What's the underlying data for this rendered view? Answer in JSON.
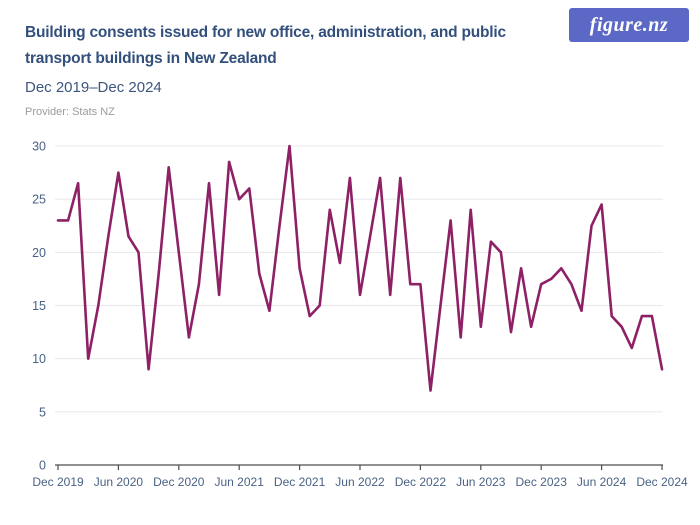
{
  "header": {
    "title": "Building consents issued for new office, administration, and public transport buildings in New Zealand",
    "title_lines": [
      "Building consents issued for new office, administration, and public",
      "transport buildings in New Zealand"
    ],
    "subtitle": "Dec 2019–Dec 2024",
    "provider": "Provider: Stats NZ",
    "logo_text": "figure.nz"
  },
  "colors": {
    "line": "#8e2066",
    "logo_bg": "#5b68c5",
    "title": "#33507d",
    "axis_label": "#4a6285",
    "grid": "#e8e8eb",
    "axis_line": "#4d4d4d",
    "provider": "#9b9b9b"
  },
  "chart_data": {
    "type": "line",
    "title": "Building consents issued for new office, administration, and public transport buildings in New Zealand",
    "subtitle": "Dec 2019–Dec 2024",
    "xlabel": "",
    "ylabel": "",
    "ylim": [
      0,
      30
    ],
    "yticks": [
      0,
      5,
      10,
      15,
      20,
      25,
      30
    ],
    "grid": true,
    "legend": false,
    "line_color": "#8e2066",
    "categories": [
      "Dec 2019",
      "Jan 2020",
      "Feb 2020",
      "Mar 2020",
      "Apr 2020",
      "May 2020",
      "Jun 2020",
      "Jul 2020",
      "Aug 2020",
      "Sep 2020",
      "Oct 2020",
      "Nov 2020",
      "Dec 2020",
      "Jan 2021",
      "Feb 2021",
      "Mar 2021",
      "Apr 2021",
      "May 2021",
      "Jun 2021",
      "Jul 2021",
      "Aug 2021",
      "Sep 2021",
      "Oct 2021",
      "Nov 2021",
      "Dec 2021",
      "Jan 2022",
      "Feb 2022",
      "Mar 2022",
      "Apr 2022",
      "May 2022",
      "Jun 2022",
      "Jul 2022",
      "Aug 2022",
      "Sep 2022",
      "Oct 2022",
      "Nov 2022",
      "Dec 2022",
      "Jan 2023",
      "Feb 2023",
      "Mar 2023",
      "Apr 2023",
      "May 2023",
      "Jun 2023",
      "Jul 2023",
      "Aug 2023",
      "Sep 2023",
      "Oct 2023",
      "Nov 2023",
      "Dec 2023",
      "Jan 2024",
      "Feb 2024",
      "Mar 2024",
      "Apr 2024",
      "May 2024",
      "Jun 2024",
      "Jul 2024",
      "Aug 2024",
      "Sep 2024",
      "Oct 2024",
      "Nov 2024",
      "Dec 2024"
    ],
    "values": [
      23,
      23,
      26.5,
      10,
      15,
      21.5,
      27.5,
      21.5,
      20,
      9,
      18,
      28,
      20,
      12,
      17,
      26.5,
      16,
      28.5,
      25,
      26,
      18,
      14.5,
      22.5,
      30,
      18.5,
      14,
      15,
      24,
      19,
      27,
      16,
      21.5,
      27,
      16,
      27,
      17,
      17,
      7,
      15,
      23,
      12,
      24,
      13,
      21,
      20,
      12.5,
      18.5,
      13,
      17,
      17.5,
      18.5,
      17,
      14.5,
      22.5,
      24.5,
      14,
      13,
      11,
      14,
      14,
      9
    ],
    "xtick_every": 6,
    "xtick_labels": [
      "Dec 2019",
      "Jun 2020",
      "Dec 2020",
      "Jun 2021",
      "Dec 2021",
      "Jun 2022",
      "Dec 2022",
      "Jun 2023",
      "Dec 2023",
      "Jun 2024",
      "Dec 2024"
    ]
  }
}
